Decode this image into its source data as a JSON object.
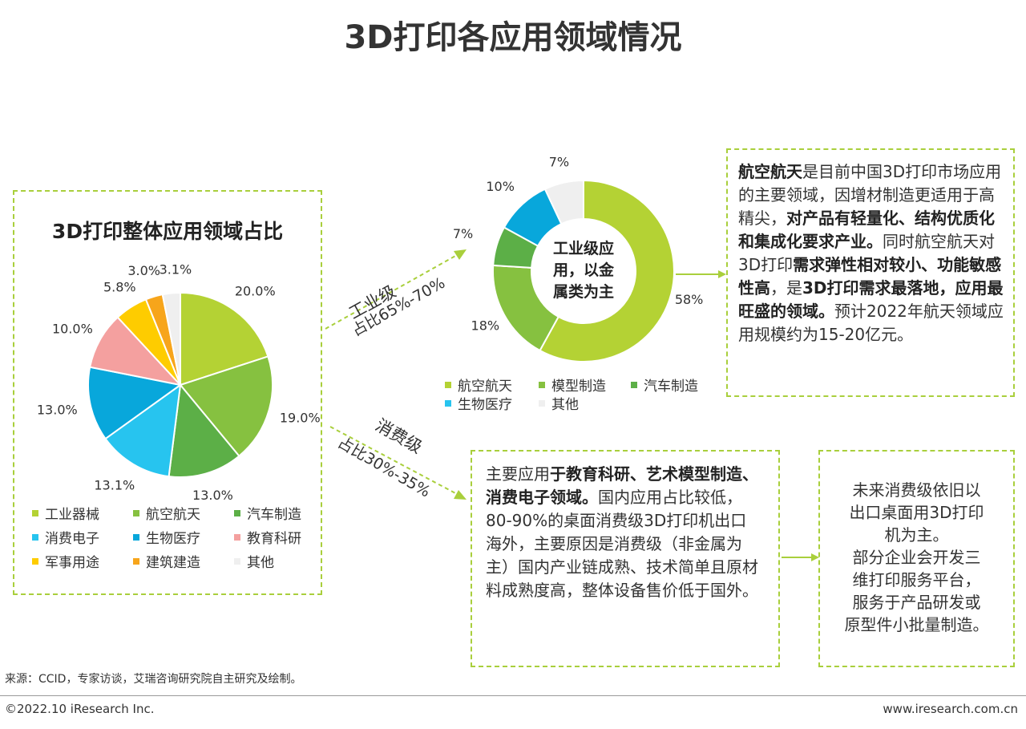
{
  "title": "3D打印各应用领域情况",
  "colors": {
    "accent_green": "#a9cf3c",
    "slice_colors": [
      "#b4d234",
      "#86c140",
      "#5caf47",
      "#27c4ef",
      "#08a7db",
      "#f4a09f",
      "#fecc00",
      "#f7a51b",
      "#efefef"
    ]
  },
  "chart_data": [
    {
      "type": "pie",
      "title": "3D打印整体应用领域占比",
      "categories": [
        "工业器械",
        "航空航天",
        "汽车制造",
        "消费电子",
        "生物医疗",
        "教育科研",
        "军事用途",
        "建筑建造",
        "其他"
      ],
      "values": [
        20.0,
        19.0,
        13.0,
        13.1,
        13.0,
        10.0,
        5.8,
        3.0,
        3.1
      ],
      "labels": [
        "20.0%",
        "19.0%",
        "13.0%",
        "13.1%",
        "13.0%",
        "10.0%",
        "5.8%",
        "3.0%",
        "3.1%"
      ],
      "legend_position": "bottom"
    },
    {
      "type": "pie",
      "donut": true,
      "center_text": [
        "工业级应",
        "用，以金",
        "属类为主"
      ],
      "categories": [
        "航空航天",
        "模型制造",
        "汽车制造",
        "生物医疗",
        "其他"
      ],
      "values": [
        58,
        18,
        7,
        10,
        7
      ],
      "labels": [
        "58%",
        "18%",
        "7%",
        "10%",
        "7%"
      ],
      "legend_position": "bottom"
    }
  ],
  "arrows": {
    "industrial_label": "工业级",
    "industrial_share": "占比65%-70%",
    "consumer_label": "消费级",
    "consumer_share": "占比30%-35%"
  },
  "box_aero": {
    "segments": [
      {
        "t": "航空航天",
        "b": true
      },
      {
        "t": "是目前中国3D打印市场应用的主要领域，因增材制造更适用于高精尖，",
        "b": false
      },
      {
        "t": "对产品有轻量化、结构优质化和集成化要求产业。",
        "b": true
      },
      {
        "t": "同时航空航天对3D打印",
        "b": false
      },
      {
        "t": "需求弹性相对较小、功能敏感性高",
        "b": true
      },
      {
        "t": "，是",
        "b": false
      },
      {
        "t": "3D打印需求最落地，应用最旺盛的领域。",
        "b": true
      },
      {
        "t": "预计2022年航天领域应用规模约为15-20亿元。",
        "b": false
      }
    ]
  },
  "box_consumer": {
    "segments": [
      {
        "t": "主要应用",
        "b": false
      },
      {
        "t": "于教育科研、艺术模型制造、消费电子领域。",
        "b": true
      },
      {
        "t": "国内应用占比较低，80-90%的桌面消费级3D打印机出口海外，主要原因是消费级（非金属为主）国内产业链成熟、技术简单且原材料成熟度高，整体设备售价低于国外。",
        "b": false
      }
    ]
  },
  "box_future": {
    "lines": [
      "未来消费级依旧以",
      "出口桌面用3D打印",
      "机为主。",
      "部分企业会开发三",
      "维打印服务平台，",
      "服务于产品研发或",
      "原型件小批量制造。"
    ]
  },
  "footer": {
    "source": "来源：CCID，专家访谈，艾瑞咨询研究院自主研究及绘制。",
    "copyright": "©2022.10 iResearch Inc.",
    "website": "www.iresearch.com.cn"
  }
}
